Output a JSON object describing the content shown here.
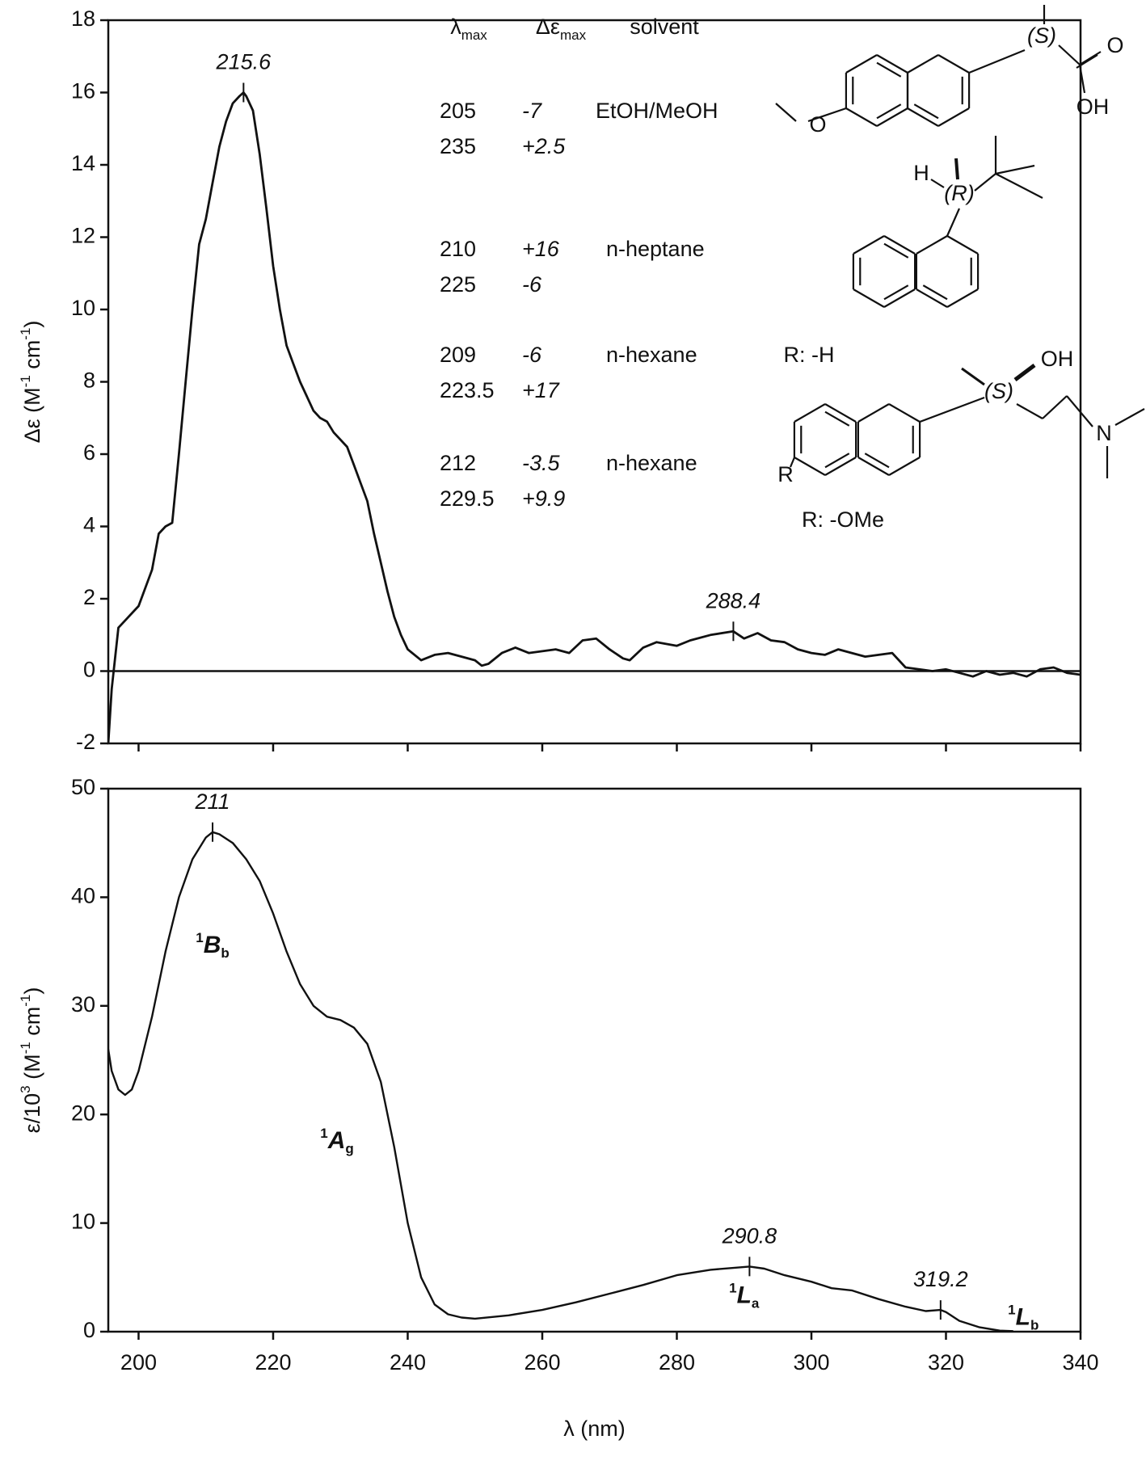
{
  "chart_data": [
    {
      "type": "line",
      "y_label": [
        {
          "text": "Δε (M"
        },
        {
          "text": "-1",
          "sup": true
        },
        {
          "text": " cm"
        },
        {
          "text": "-1",
          "sup": true
        },
        {
          "text": ")"
        }
      ],
      "x": [
        195.5,
        196,
        197,
        198,
        200,
        202,
        203,
        204,
        205,
        206,
        207,
        208,
        209,
        210,
        211,
        212,
        213,
        214,
        215,
        215.6,
        216,
        217,
        218,
        219,
        220,
        221,
        222,
        223,
        224,
        225,
        226,
        227,
        228,
        229,
        230,
        231,
        232,
        233,
        234,
        235,
        236,
        237,
        238,
        239,
        240,
        242,
        244,
        246,
        248,
        250,
        251,
        252,
        254,
        256,
        258,
        260,
        262,
        264,
        266,
        268,
        270,
        272,
        273,
        275,
        277,
        280,
        282,
        285,
        288.4,
        290,
        292,
        294,
        296,
        298,
        300,
        302,
        304,
        306,
        308,
        310,
        312,
        314,
        316,
        318,
        320,
        322,
        324,
        326,
        328,
        330,
        332,
        334,
        336,
        338,
        340
      ],
      "series": [
        {
          "color": "#111111",
          "values": [
            -2,
            -0.5,
            1.2,
            1.4,
            1.8,
            2.8,
            3.8,
            4.0,
            4.1,
            6,
            8,
            10,
            11.8,
            12.5,
            13.5,
            14.5,
            15.2,
            15.7,
            15.9,
            16,
            15.9,
            15.5,
            14.3,
            12.8,
            11.2,
            10,
            9,
            8.5,
            8,
            7.6,
            7.2,
            7.0,
            6.9,
            6.6,
            6.4,
            6.2,
            5.7,
            5.2,
            4.7,
            3.8,
            3.0,
            2.2,
            1.5,
            1.0,
            0.6,
            0.3,
            0.45,
            0.5,
            0.4,
            0.3,
            0.15,
            0.2,
            0.5,
            0.65,
            0.5,
            0.55,
            0.6,
            0.5,
            0.85,
            0.9,
            0.6,
            0.35,
            0.3,
            0.65,
            0.8,
            0.7,
            0.85,
            1.0,
            1.1,
            0.9,
            1.05,
            0.85,
            0.8,
            0.6,
            0.5,
            0.45,
            0.6,
            0.5,
            0.4,
            0.45,
            0.5,
            0.1,
            0.05,
            0.0,
            0.05,
            -0.05,
            -0.15,
            0.0,
            -0.1,
            -0.05,
            -0.15,
            0.05,
            0.1,
            -0.05,
            -0.1
          ]
        }
      ],
      "xlim": [
        195.5,
        340
      ],
      "xticks": [
        200,
        220,
        240,
        260,
        280,
        300,
        320,
        340
      ],
      "xtick_labels": false,
      "ylim": [
        -2,
        18
      ],
      "yticks": [
        -2,
        0,
        2,
        4,
        6,
        8,
        10,
        12,
        14,
        16,
        18
      ],
      "zero_line": true,
      "peaks": [
        {
          "x": 215.6,
          "y": 16,
          "label": "215.6"
        },
        {
          "x": 288.4,
          "y": 1.1,
          "label": "288.4"
        }
      ],
      "table": {
        "columns": [
          [
            {
              "text": "λ"
            },
            {
              "text": "max",
              "sub": true
            }
          ],
          [
            {
              "text": "Δε"
            },
            {
              "text": "max",
              "sub": true
            }
          ],
          [
            {
              "text": "solvent"
            }
          ]
        ],
        "groups": [
          {
            "solvent": "EtOH/MeOH",
            "lines": [
              [
                "205",
                "-7"
              ],
              [
                "235",
                "+2.5"
              ]
            ]
          },
          {
            "solvent": "n-heptane",
            "lines": [
              [
                "210",
                "+16"
              ],
              [
                "225",
                "-6"
              ]
            ]
          },
          {
            "solvent": "n-hexane",
            "lines": [
              [
                "209",
                "-6"
              ],
              [
                "223.5",
                "+17"
              ]
            ]
          },
          {
            "solvent": "n-hexane",
            "lines": [
              [
                "212",
                "-3.5"
              ],
              [
                "229.5",
                "+9.9"
              ]
            ]
          }
        ]
      },
      "structure_labels": [
        "(S)",
        "O",
        "OH",
        "O",
        "H",
        "(R)",
        "(S)",
        "OH",
        "N",
        "R",
        "R: -H",
        "R: -OMe"
      ]
    },
    {
      "type": "line",
      "y_label": [
        {
          "text": "ε/10"
        },
        {
          "text": "3",
          "sup": true
        },
        {
          "text": " (M"
        },
        {
          "text": "-1",
          "sup": true
        },
        {
          "text": " cm"
        },
        {
          "text": "-1",
          "sup": true
        },
        {
          "text": ")"
        }
      ],
      "x_label": "λ (nm)",
      "x": [
        195.5,
        196,
        197,
        198,
        199,
        200,
        202,
        204,
        206,
        208,
        210,
        211,
        212,
        214,
        216,
        218,
        220,
        222,
        224,
        226,
        228,
        230,
        232,
        234,
        236,
        238,
        240,
        242,
        244,
        246,
        248,
        250,
        255,
        260,
        265,
        270,
        275,
        280,
        285,
        290.8,
        293,
        296,
        300,
        303,
        306,
        310,
        314,
        317,
        319.2,
        320,
        322,
        325,
        328,
        330
      ],
      "series": [
        {
          "color": "#111111",
          "values": [
            26,
            24,
            22.3,
            21.8,
            22.3,
            24,
            29,
            35,
            40,
            43.5,
            45.5,
            46,
            45.8,
            45,
            43.5,
            41.5,
            38.5,
            35,
            32,
            30,
            29,
            28.7,
            28,
            26.5,
            23,
            17,
            10,
            5,
            2.5,
            1.6,
            1.3,
            1.2,
            1.5,
            2,
            2.7,
            3.5,
            4.3,
            5.2,
            5.7,
            6,
            5.8,
            5.2,
            4.6,
            4.0,
            3.8,
            3.0,
            2.3,
            1.9,
            2.0,
            1.8,
            1.0,
            0.4,
            0.1,
            0.05
          ]
        }
      ],
      "xlim": [
        195.5,
        340
      ],
      "xticks": [
        200,
        220,
        240,
        260,
        280,
        300,
        320,
        340
      ],
      "xtick_labels": true,
      "ylim": [
        0,
        50
      ],
      "yticks": [
        0,
        10,
        20,
        30,
        40,
        50
      ],
      "zero_line": false,
      "peaks": [
        {
          "x": 211,
          "y": 46,
          "label": "211"
        },
        {
          "x": 290.8,
          "y": 6,
          "label": "290.8"
        },
        {
          "x": 319.2,
          "y": 2,
          "label": "319.2"
        }
      ],
      "bands": [
        {
          "sup": "1",
          "main": "B",
          "sub": "b"
        },
        {
          "sup": "1",
          "main": "A",
          "sub": "g"
        },
        {
          "sup": "1",
          "main": "L",
          "sub": "a"
        },
        {
          "sup": "1",
          "main": "L",
          "sub": "b"
        }
      ]
    }
  ]
}
